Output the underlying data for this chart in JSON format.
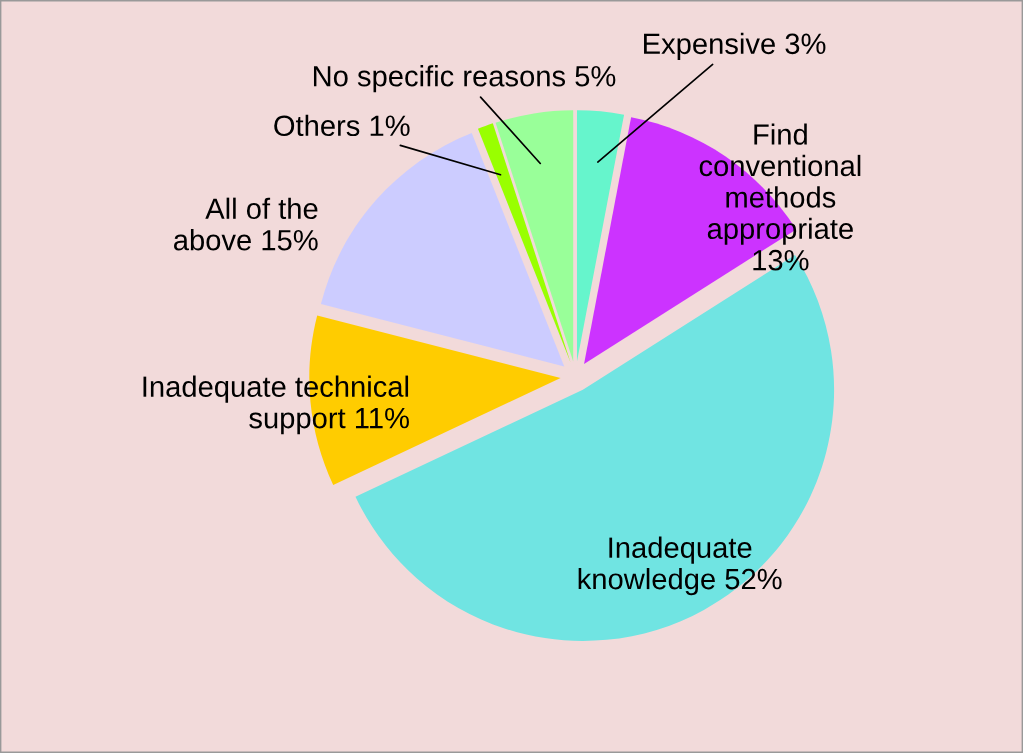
{
  "chart_data": {
    "type": "pie",
    "categories": [
      "Expensive",
      "Find\nconventional\nmethods\nappropriate\n",
      "Inadequate\nknowledge",
      "Inadequate technical\nsupport",
      "All of the\nabove",
      "Others",
      "No specific reasons"
    ],
    "values": [
      3,
      13,
      52,
      11,
      15,
      1,
      5
    ],
    "value_labels": [
      "3%",
      "13%",
      "52%",
      "11%",
      "15%",
      "1%",
      "5%"
    ],
    "colors": [
      "#66f5cc",
      "#cc33ff",
      "#70e4e2",
      "#ffcc00",
      "#ccccff",
      "#99ff00",
      "#99ff99"
    ],
    "legend": false
  }
}
